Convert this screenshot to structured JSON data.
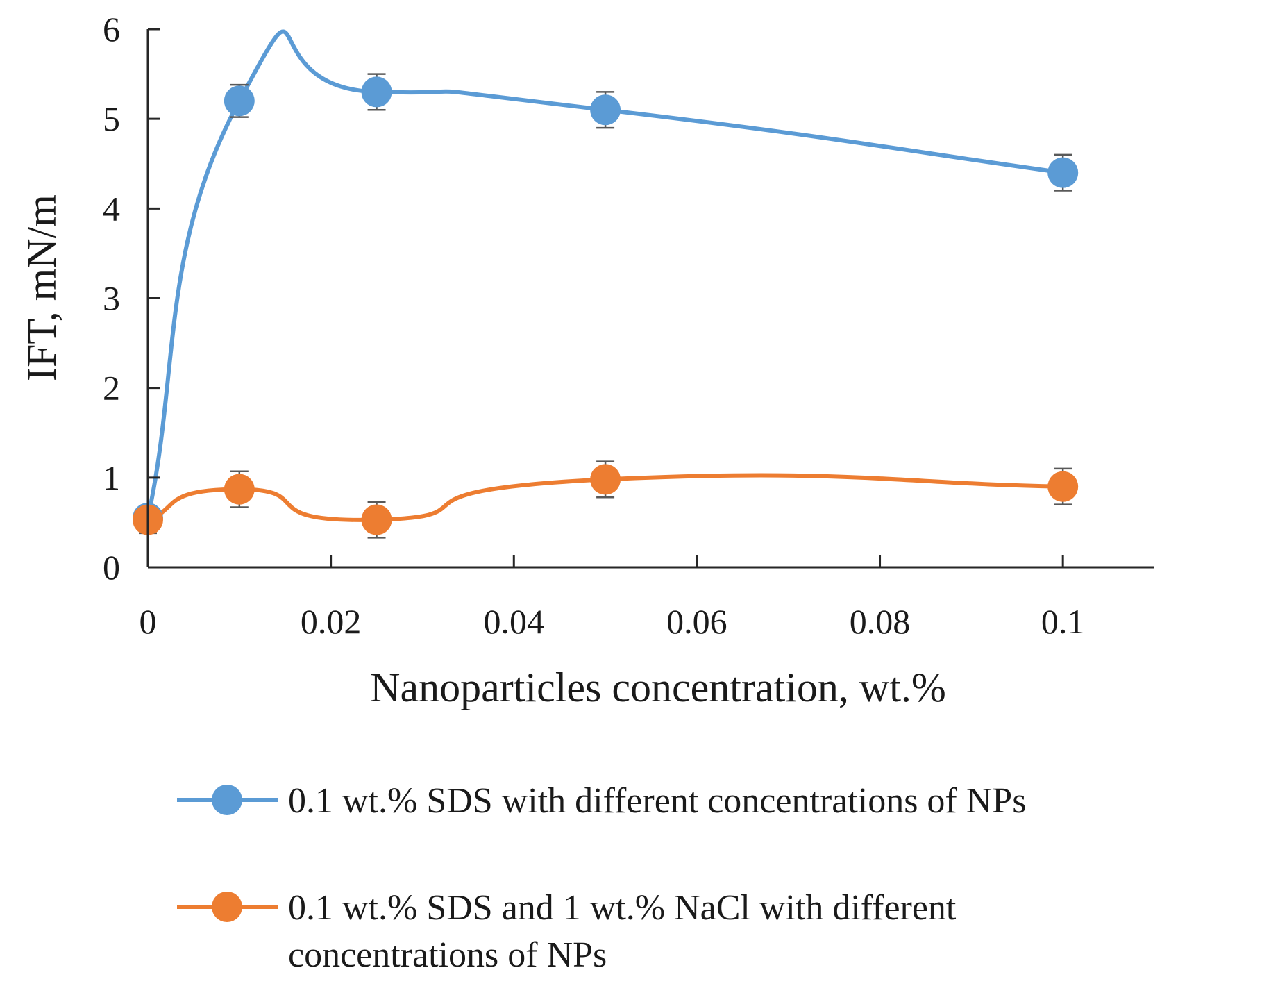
{
  "chart_data": {
    "type": "line",
    "title": "",
    "xlabel": "Nanoparticles concentration, wt.%",
    "ylabel": "IFT, mN/m",
    "xlim": [
      0,
      0.11
    ],
    "ylim": [
      0,
      6
    ],
    "x_ticks": [
      0,
      0.02,
      0.04,
      0.06,
      0.08,
      0.1
    ],
    "x_tick_labels": [
      "0",
      "0.02",
      "0.04",
      "0.06",
      "0.08",
      "0.1"
    ],
    "y_ticks": [
      0,
      1,
      2,
      3,
      4,
      5,
      6
    ],
    "y_tick_labels": [
      "0",
      "1",
      "2",
      "3",
      "4",
      "5",
      "6"
    ],
    "grid": false,
    "smooth": true,
    "legend_position": "bottom",
    "series": [
      {
        "name": "0.1 wt.% SDS with different concentrations of NPs",
        "legend_lines": [
          "0.1 wt.% SDS with different concentrations of NPs"
        ],
        "color": "#5b9bd5",
        "x": [
          0,
          0.01,
          0.025,
          0.05,
          0.1
        ],
        "y": [
          0.55,
          5.2,
          5.3,
          5.1,
          4.4
        ],
        "error": [
          0,
          0.18,
          0.2,
          0.2,
          0.2
        ]
      },
      {
        "name": "0.1 wt.% SDS and 1 wt.% NaCl with different concentrations of NPs",
        "legend_lines": [
          "0.1 wt.% SDS and 1 wt.% NaCl with different",
          "concentrations of NPs"
        ],
        "color": "#ed7d31",
        "x": [
          0,
          0.01,
          0.025,
          0.05,
          0.1
        ],
        "y": [
          0.53,
          0.87,
          0.53,
          0.98,
          0.9
        ],
        "error": [
          0.15,
          0.2,
          0.2,
          0.2,
          0.2
        ]
      }
    ]
  }
}
